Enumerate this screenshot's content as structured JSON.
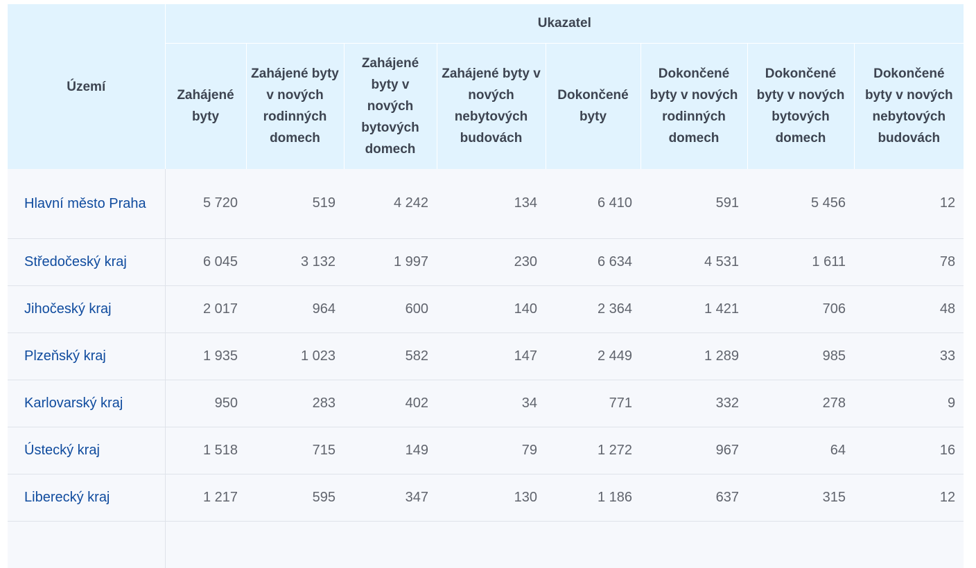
{
  "table": {
    "group_header": "Ukazatel",
    "territory_header": "Území",
    "columns": [
      "Zahájené byty",
      "Zahájené byty v nových rodinných domech",
      "Zahájené byty v nových bytových domech",
      "Zahájené byty v nových nebytových budovách",
      "Dokončené byty",
      "Dokončené byty v nových rodinných domech",
      "Dokončené byty v nových bytových domech",
      "Dokončené byty v nových nebytových budovách"
    ],
    "rows": [
      {
        "name": "Hlavní město Praha",
        "values": [
          "5 720",
          "519",
          "4 242",
          "134",
          "6 410",
          "591",
          "5 456",
          "12"
        ]
      },
      {
        "name": "Středočeský kraj",
        "values": [
          "6 045",
          "3 132",
          "1 997",
          "230",
          "6 634",
          "4 531",
          "1 611",
          "78"
        ]
      },
      {
        "name": "Jihočeský kraj",
        "values": [
          "2 017",
          "964",
          "600",
          "140",
          "2 364",
          "1 421",
          "706",
          "48"
        ]
      },
      {
        "name": "Plzeňský kraj",
        "values": [
          "1 935",
          "1 023",
          "582",
          "147",
          "2 449",
          "1 289",
          "985",
          "33"
        ]
      },
      {
        "name": "Karlovarský kraj",
        "values": [
          "950",
          "283",
          "402",
          "34",
          "771",
          "332",
          "278",
          "9"
        ]
      },
      {
        "name": "Ústecký kraj",
        "values": [
          "1 518",
          "715",
          "149",
          "79",
          "1 272",
          "967",
          "64",
          "16"
        ]
      },
      {
        "name": "Liberecký kraj",
        "values": [
          "1 217",
          "595",
          "347",
          "130",
          "1 186",
          "637",
          "315",
          "12"
        ]
      },
      {
        "name": "",
        "values": [
          "",
          "",
          "",
          "",
          "",
          "",
          "",
          ""
        ]
      }
    ]
  },
  "colors": {
    "header_bg": "#e1f3fe",
    "row_bg": "#f6f8fc",
    "link": "#0f4b9e",
    "value_text": "#60646d",
    "header_text": "#3d4451"
  }
}
